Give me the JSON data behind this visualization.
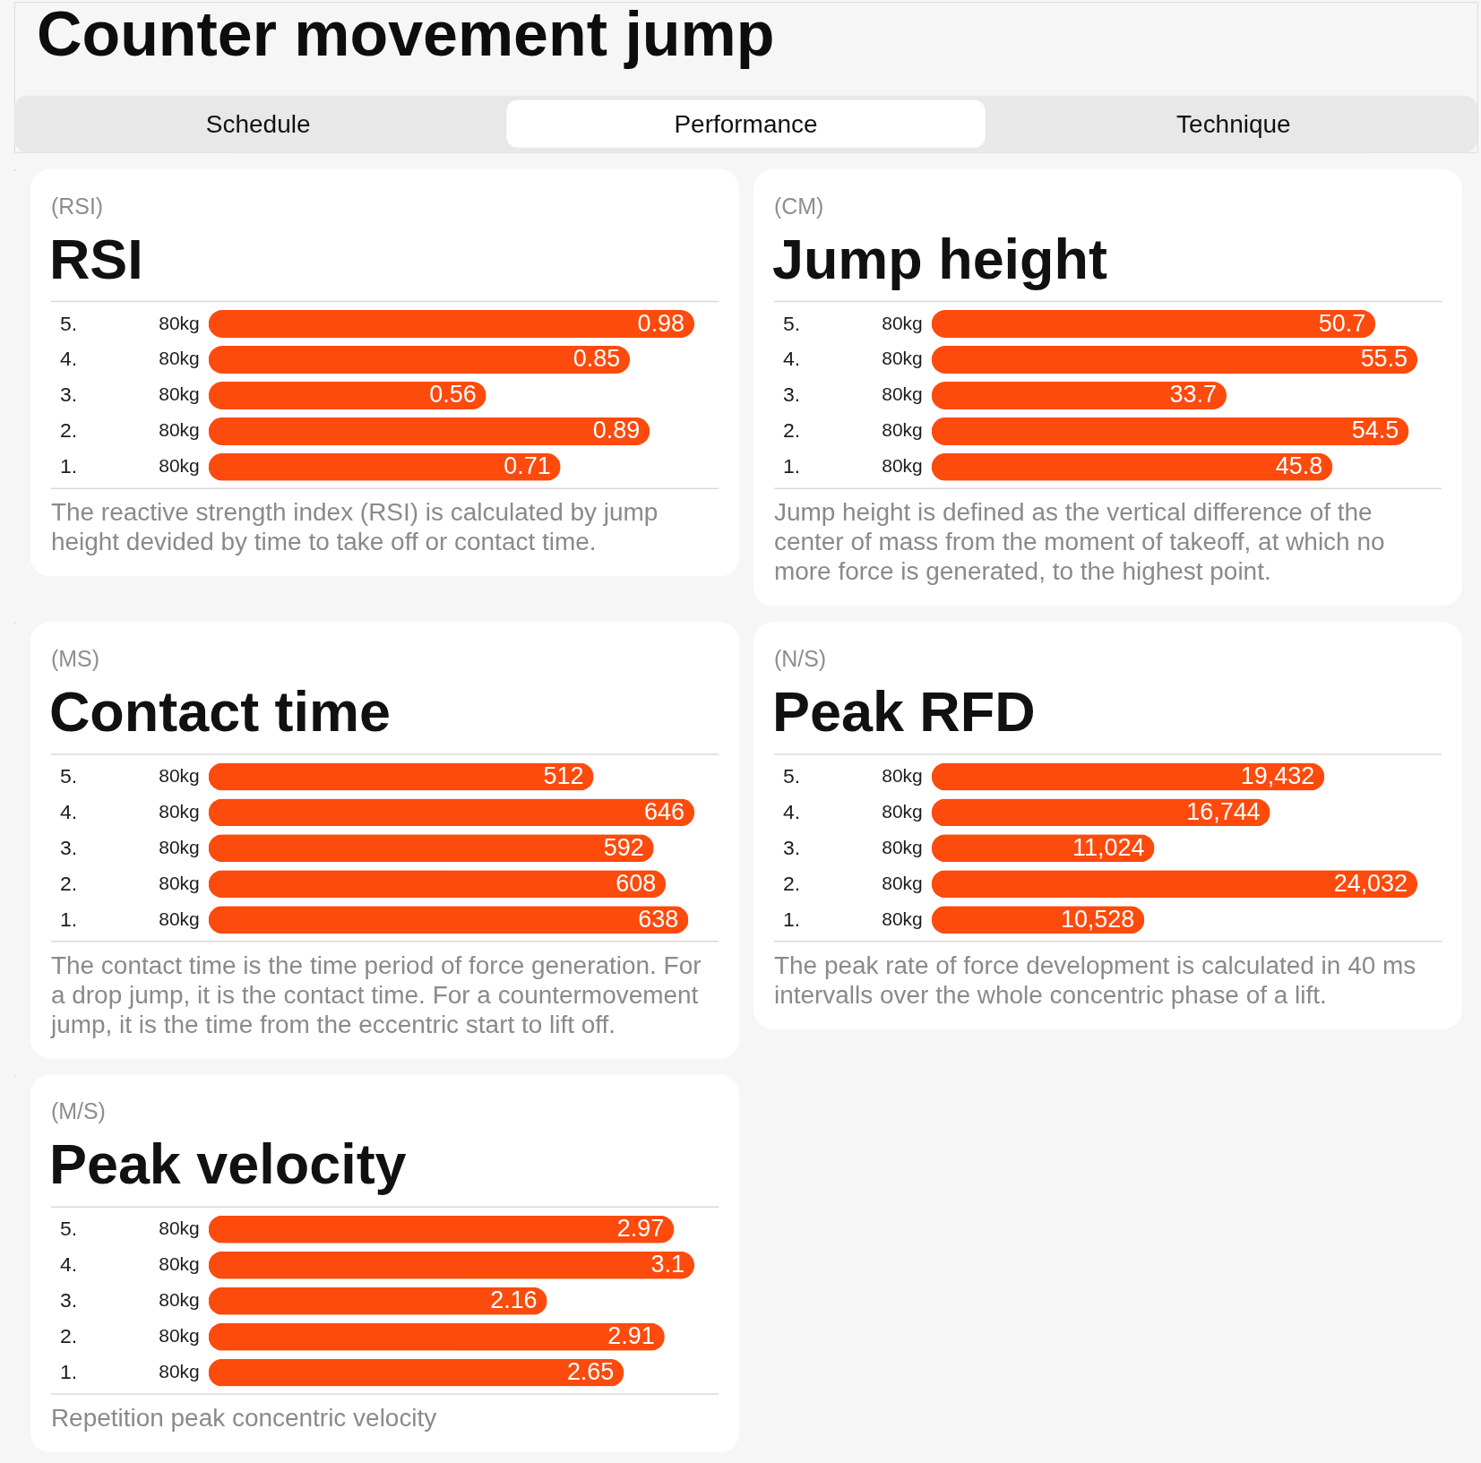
{
  "chart_data": [
    {
      "type": "other",
      "title": "Counter movement jump",
      "annotations": [
        "Schedule",
        "Performance",
        "Technique"
      ]
    },
    {
      "type": "bar",
      "orientation": "horizontal",
      "subtitle": "(RSI)",
      "title": "RSI",
      "categories": [
        "5.",
        "4.",
        "3.",
        "2.",
        "1."
      ],
      "y2_categories": [
        "80kg",
        "80kg",
        "80kg",
        "80kg",
        "80kg"
      ],
      "values": [
        0.98,
        0.85,
        0.56,
        0.89,
        0.71
      ],
      "color": "#fd4a0d",
      "data_labels": true,
      "annotations": [
        "The reactive strength index (RSI) is calculated by jump height devided by time to take off or contact time."
      ]
    },
    {
      "type": "bar",
      "orientation": "horizontal",
      "subtitle": "(CM)",
      "title": "Jump height",
      "categories": [
        "5.",
        "4.",
        "3.",
        "2.",
        "1."
      ],
      "y2_categories": [
        "80kg",
        "80kg",
        "80kg",
        "80kg",
        "80kg"
      ],
      "values": [
        50.7,
        55.5,
        33.7,
        54.5,
        45.8
      ],
      "color": "#fd4a0d",
      "data_labels": true,
      "annotations": [
        "Jump height is defined as the vertical difference of the center of mass from the moment of takeoff, at which no more force is generated, to the highest point."
      ]
    },
    {
      "type": "bar",
      "orientation": "horizontal",
      "subtitle": "(MS)",
      "title": "Contact time",
      "categories": [
        "5.",
        "4.",
        "3.",
        "2.",
        "1."
      ],
      "y2_categories": [
        "80kg",
        "80kg",
        "80kg",
        "80kg",
        "80kg"
      ],
      "values": [
        512,
        646,
        592,
        608,
        638
      ],
      "color": "#fd4a0d",
      "data_labels": true,
      "annotations": [
        "The contact time is the time period of force generation. For a drop jump, it is the contact time. For a countermovement jump, it is the time from the eccentric start to lift off."
      ]
    },
    {
      "type": "bar",
      "orientation": "horizontal",
      "subtitle": "(N/S)",
      "title": "Peak RFD",
      "categories": [
        "5.",
        "4.",
        "3.",
        "2.",
        "1."
      ],
      "y2_categories": [
        "80kg",
        "80kg",
        "80kg",
        "80kg",
        "80kg"
      ],
      "values": [
        19432,
        16744,
        11024,
        24032,
        10528
      ],
      "color": "#fd4a0d",
      "value_labels": [
        "19,432",
        "16,744",
        "11,024",
        "24,032",
        "10,528"
      ],
      "annotations": [
        "The peak rate of force development is calculated in 40 ms intervalls over the whole concentric phase of a lift."
      ]
    },
    {
      "type": "bar",
      "orientation": "horizontal",
      "subtitle": "(M/S)",
      "title": "Peak velocity",
      "categories": [
        "5.",
        "4.",
        "3.",
        "2.",
        "1."
      ],
      "y2_categories": [
        "80kg",
        "80kg",
        "80kg",
        "80kg",
        "80kg"
      ],
      "values": [
        2.97,
        3.1,
        2.16,
        2.91,
        2.65
      ],
      "color": "#fd4a0d",
      "data_labels": true,
      "annotations": [
        "Repetition peak concentric velocity"
      ]
    }
  ]
}
